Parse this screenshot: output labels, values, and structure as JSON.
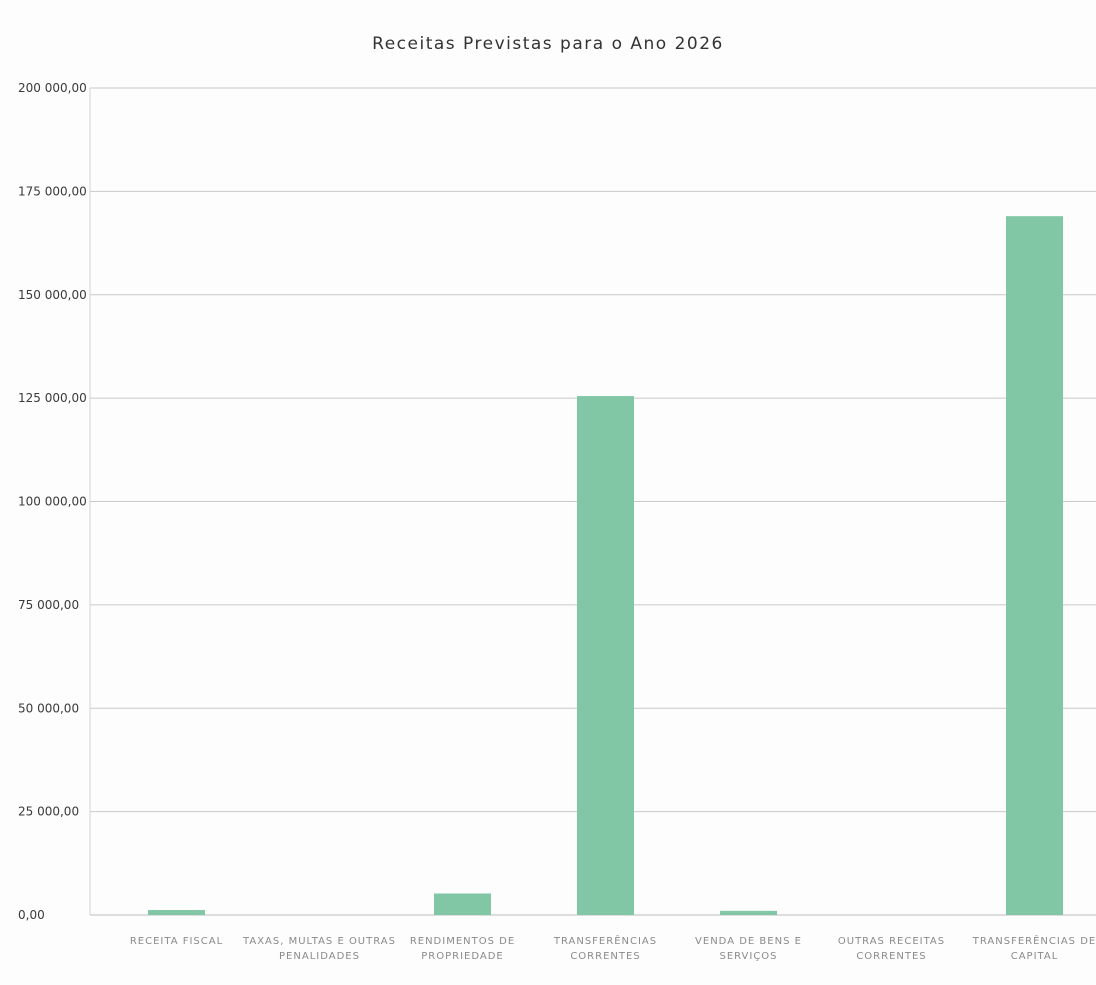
{
  "chart_data": {
    "type": "bar",
    "title": "Receitas Previstas para o Ano 2026",
    "xlabel": "",
    "ylabel": "",
    "ylim": [
      0,
      200000
    ],
    "y_ticks": [
      0,
      25000,
      50000,
      75000,
      100000,
      125000,
      150000,
      175000,
      200000
    ],
    "y_tick_labels": [
      "0,00",
      "25 000,00",
      "50 000,00",
      "75 000,00",
      "100 000,00",
      "125 000,00",
      "150 000,00",
      "175 000,00",
      "200 000,00"
    ],
    "categories": [
      [
        "RECEITA FISCAL"
      ],
      [
        "TAXAS, MULTAS E OUTRAS",
        "PENALIDADES"
      ],
      [
        "RENDIMENTOS DE",
        "PROPRIEDADE"
      ],
      [
        "TRANSFERÊNCIAS",
        "CORRENTES"
      ],
      [
        "VENDA DE BENS E",
        "SERVIÇOS"
      ],
      [
        "OUTRAS RECEITAS",
        "CORRENTES"
      ],
      [
        "TRANSFERÊNCIAS DE",
        "CAPITAL"
      ]
    ],
    "values": [
      1200,
      0,
      5200,
      125500,
      1000,
      0,
      169000
    ],
    "grid": true,
    "legend": "none",
    "bar_color": "#82c7a5"
  }
}
